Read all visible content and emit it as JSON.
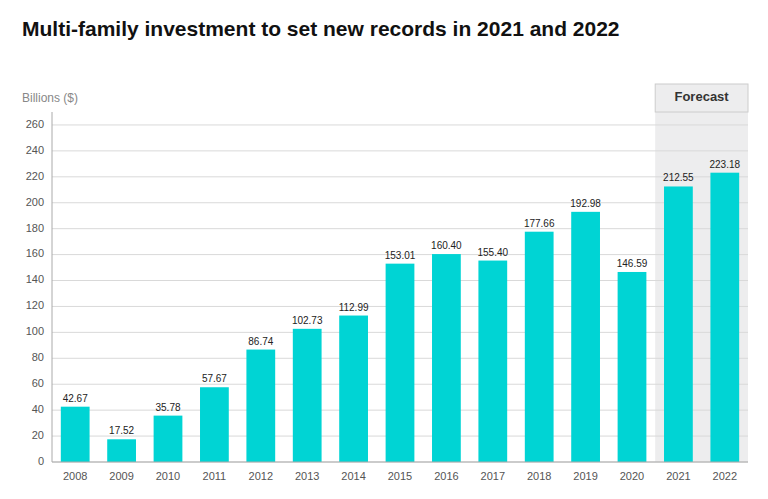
{
  "chart_data": {
    "type": "bar",
    "title": "Multi-family investment to set new records in 2021 and 2022",
    "y_label": "Billions ($)",
    "categories": [
      "2008",
      "2009",
      "2010",
      "2011",
      "2012",
      "2013",
      "2014",
      "2015",
      "2016",
      "2017",
      "2018",
      "2019",
      "2020",
      "2021",
      "2022"
    ],
    "values": [
      42.67,
      17.52,
      35.78,
      57.67,
      86.74,
      102.73,
      112.99,
      153.01,
      160.4,
      155.4,
      177.66,
      192.98,
      146.59,
      212.55,
      223.18
    ],
    "value_labels": [
      "42.67",
      "17.52",
      "35.78",
      "57.67",
      "86.74",
      "102.73",
      "112.99",
      "153.01",
      "160.40",
      "155.40",
      "177.66",
      "192.98",
      "146.59",
      "212.55",
      "223.18"
    ],
    "color": "#00D4D4",
    "ylim": [
      0,
      270
    ],
    "yticks": [
      0,
      20,
      40,
      60,
      80,
      100,
      120,
      140,
      160,
      180,
      200,
      220,
      240,
      260
    ],
    "grid": true,
    "data_labels": true,
    "annotations": [
      {
        "text": "Forecast",
        "from": "2021",
        "to": "2022",
        "color": "#EDEDEE"
      }
    ]
  }
}
